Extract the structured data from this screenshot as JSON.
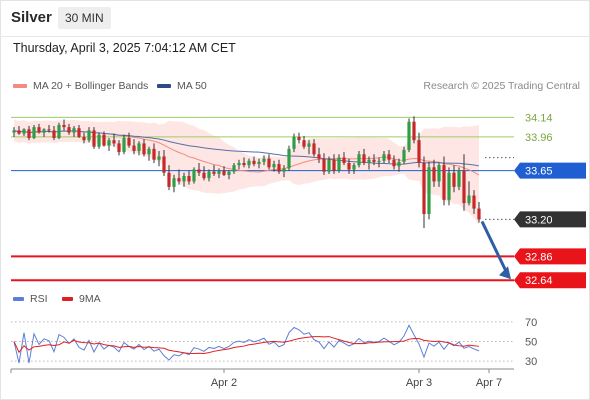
{
  "header": {
    "instrument": "Silver",
    "timeframe": "30 MIN"
  },
  "datetime": "Thursday, April 3, 2025 7:04:12 AM CET",
  "legend": {
    "bollinger": {
      "label": "MA 20 + Bollinger Bands",
      "color": "#f28b82"
    },
    "ma50": {
      "label": "MA 50",
      "color": "#2e4a8a"
    },
    "credit": "Research © 2025 Trading Central"
  },
  "rsi_legend": {
    "rsi": {
      "label": "RSI",
      "color": "#5b7fd6"
    },
    "ma9": {
      "label": "9MA",
      "color": "#e02020"
    }
  },
  "chart_data": {
    "type": "candlestick",
    "price_range": [
      32.55,
      34.3
    ],
    "levels": [
      {
        "label": "34.14",
        "value": 34.14,
        "kind": "green"
      },
      {
        "label": "33.96",
        "value": 33.96,
        "kind": "green"
      },
      {
        "label": "33.65",
        "value": 33.65,
        "kind": "blue"
      },
      {
        "label": "33.20",
        "value": 33.2,
        "kind": "last"
      },
      {
        "label": "32.86",
        "value": 32.86,
        "kind": "red"
      },
      {
        "label": "32.64",
        "value": 32.64,
        "kind": "red"
      }
    ],
    "arrow": {
      "from": 33.2,
      "to": 32.64
    },
    "candles": [
      [
        34.0,
        34.05,
        33.96,
        34.02
      ],
      [
        34.02,
        34.06,
        33.98,
        33.99
      ],
      [
        33.99,
        34.04,
        33.97,
        34.03
      ],
      [
        34.03,
        34.06,
        33.93,
        33.95
      ],
      [
        33.95,
        34.07,
        33.94,
        34.05
      ],
      [
        34.05,
        34.08,
        33.99,
        34.0
      ],
      [
        34.0,
        34.04,
        33.96,
        34.03
      ],
      [
        34.03,
        34.07,
        34.0,
        34.02
      ],
      [
        34.02,
        34.06,
        33.93,
        33.95
      ],
      [
        33.95,
        34.09,
        33.94,
        34.07
      ],
      [
        34.07,
        34.12,
        34.02,
        34.05
      ],
      [
        34.05,
        34.08,
        33.98,
        34.0
      ],
      [
        34.0,
        34.06,
        33.96,
        34.04
      ],
      [
        34.04,
        34.07,
        33.95,
        33.96
      ],
      [
        33.96,
        34.0,
        33.9,
        33.93
      ],
      [
        33.93,
        34.05,
        33.91,
        34.02
      ],
      [
        34.02,
        34.05,
        33.85,
        33.87
      ],
      [
        33.87,
        34.0,
        33.85,
        33.98
      ],
      [
        33.98,
        34.01,
        33.87,
        33.88
      ],
      [
        33.88,
        33.95,
        33.83,
        33.93
      ],
      [
        33.93,
        33.99,
        33.87,
        33.9
      ],
      [
        33.9,
        33.93,
        33.79,
        33.82
      ],
      [
        33.82,
        33.98,
        33.8,
        33.95
      ],
      [
        33.95,
        34.0,
        33.86,
        33.88
      ],
      [
        33.88,
        33.94,
        33.8,
        33.83
      ],
      [
        33.83,
        33.92,
        33.79,
        33.9
      ],
      [
        33.9,
        33.94,
        33.78,
        33.8
      ],
      [
        33.8,
        33.87,
        33.74,
        33.85
      ],
      [
        33.85,
        33.9,
        33.72,
        33.75
      ],
      [
        33.75,
        33.83,
        33.69,
        33.78
      ],
      [
        33.78,
        33.84,
        33.6,
        33.63
      ],
      [
        33.63,
        33.7,
        33.47,
        33.5
      ],
      [
        33.5,
        33.61,
        33.45,
        33.58
      ],
      [
        33.58,
        33.66,
        33.52,
        33.55
      ],
      [
        33.55,
        33.63,
        33.5,
        33.6
      ],
      [
        33.6,
        33.65,
        33.52,
        33.55
      ],
      [
        33.55,
        33.68,
        33.53,
        33.66
      ],
      [
        33.66,
        33.72,
        33.6,
        33.63
      ],
      [
        33.63,
        33.69,
        33.56,
        33.58
      ],
      [
        33.58,
        33.66,
        33.55,
        33.64
      ],
      [
        33.64,
        33.7,
        33.6,
        33.62
      ],
      [
        33.62,
        33.67,
        33.58,
        33.65
      ],
      [
        33.65,
        33.69,
        33.6,
        33.61
      ],
      [
        33.61,
        33.65,
        33.57,
        33.64
      ],
      [
        33.64,
        33.72,
        33.62,
        33.7
      ],
      [
        33.7,
        33.75,
        33.66,
        33.72
      ],
      [
        33.72,
        33.77,
        33.68,
        33.7
      ],
      [
        33.7,
        33.76,
        33.67,
        33.74
      ],
      [
        33.74,
        33.78,
        33.69,
        33.71
      ],
      [
        33.71,
        33.76,
        33.67,
        33.73
      ],
      [
        33.73,
        33.79,
        33.7,
        33.76
      ],
      [
        33.76,
        33.8,
        33.66,
        33.68
      ],
      [
        33.68,
        33.74,
        33.64,
        33.71
      ],
      [
        33.71,
        33.75,
        33.62,
        33.64
      ],
      [
        33.64,
        33.7,
        33.59,
        33.67
      ],
      [
        33.67,
        33.88,
        33.65,
        33.85
      ],
      [
        33.85,
        33.99,
        33.82,
        33.96
      ],
      [
        33.96,
        34.0,
        33.9,
        33.93
      ],
      [
        33.93,
        33.97,
        33.85,
        33.87
      ],
      [
        33.87,
        33.93,
        33.8,
        33.9
      ],
      [
        33.9,
        33.94,
        33.78,
        33.8
      ],
      [
        33.8,
        33.86,
        33.72,
        33.76
      ],
      [
        33.76,
        33.81,
        33.61,
        33.64
      ],
      [
        33.64,
        33.78,
        33.62,
        33.75
      ],
      [
        33.75,
        33.8,
        33.62,
        33.65
      ],
      [
        33.65,
        33.8,
        33.63,
        33.77
      ],
      [
        33.77,
        33.82,
        33.7,
        33.72
      ],
      [
        33.72,
        33.76,
        33.62,
        33.66
      ],
      [
        33.66,
        33.72,
        33.62,
        33.7
      ],
      [
        33.7,
        33.83,
        33.68,
        33.8
      ],
      [
        33.8,
        33.85,
        33.7,
        33.72
      ],
      [
        33.72,
        33.78,
        33.66,
        33.75
      ],
      [
        33.75,
        33.8,
        33.7,
        33.73
      ],
      [
        33.73,
        33.77,
        33.68,
        33.74
      ],
      [
        33.74,
        33.83,
        33.72,
        33.8
      ],
      [
        33.8,
        33.84,
        33.72,
        33.75
      ],
      [
        33.75,
        33.79,
        33.66,
        33.69
      ],
      [
        33.69,
        33.76,
        33.64,
        33.73
      ],
      [
        33.73,
        33.87,
        33.71,
        33.84
      ],
      [
        33.84,
        34.13,
        33.82,
        34.1
      ],
      [
        34.1,
        34.15,
        33.9,
        33.93
      ],
      [
        33.93,
        34.0,
        33.68,
        33.72
      ],
      [
        33.72,
        33.78,
        33.12,
        33.25
      ],
      [
        33.25,
        33.73,
        33.2,
        33.68
      ],
      [
        33.68,
        33.75,
        33.5,
        33.55
      ],
      [
        33.55,
        33.72,
        33.5,
        33.7
      ],
      [
        33.7,
        33.78,
        33.33,
        33.38
      ],
      [
        33.38,
        33.68,
        33.33,
        33.63
      ],
      [
        33.63,
        33.7,
        33.45,
        33.5
      ],
      [
        33.5,
        33.68,
        33.47,
        33.65
      ],
      [
        33.65,
        33.8,
        33.28,
        33.35
      ],
      [
        33.35,
        33.55,
        33.33,
        33.42
      ],
      [
        33.42,
        33.47,
        33.25,
        33.3
      ],
      [
        33.3,
        33.36,
        33.17,
        33.2
      ]
    ],
    "rsi": {
      "axis_ticks": [
        70,
        50,
        30
      ],
      "range": [
        25,
        80
      ]
    },
    "x_labels": [
      "Apr 2",
      "Apr 3",
      "Apr 7"
    ]
  }
}
